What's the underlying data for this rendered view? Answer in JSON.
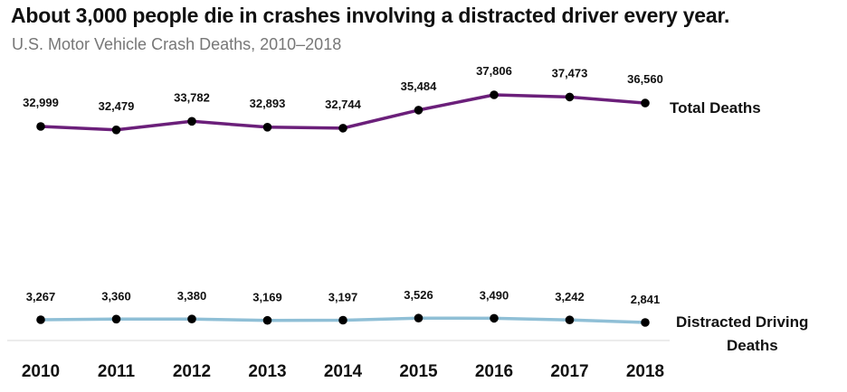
{
  "chart_data": {
    "type": "line",
    "title": "About 3,000 people die in crashes involving a distracted driver every year.",
    "subtitle": "U.S. Motor Vehicle Crash Deaths, 2010–2018",
    "categories": [
      "2010",
      "2011",
      "2012",
      "2013",
      "2014",
      "2015",
      "2016",
      "2017",
      "2018"
    ],
    "series": [
      {
        "name": "Total Deaths",
        "color": "#6b1f7a",
        "values": [
          32999,
          32479,
          33782,
          32893,
          32744,
          35484,
          37806,
          37473,
          36560
        ],
        "labels": [
          "32,999",
          "32,479",
          "33,782",
          "32,893",
          "32,744",
          "35,484",
          "37,806",
          "37,473",
          "36,560"
        ]
      },
      {
        "name": "Distracted Driving Deaths",
        "color": "#8fbfd6",
        "values": [
          3267,
          3360,
          3380,
          3169,
          3197,
          3526,
          3490,
          3242,
          2841
        ],
        "labels": [
          "3,267",
          "3,360",
          "3,380",
          "3,169",
          "3,197",
          "3,526",
          "3,490",
          "3,242",
          "2,841"
        ]
      }
    ],
    "marker_color": "#000000",
    "grid": false,
    "legend": "series labels at right end of lines"
  }
}
